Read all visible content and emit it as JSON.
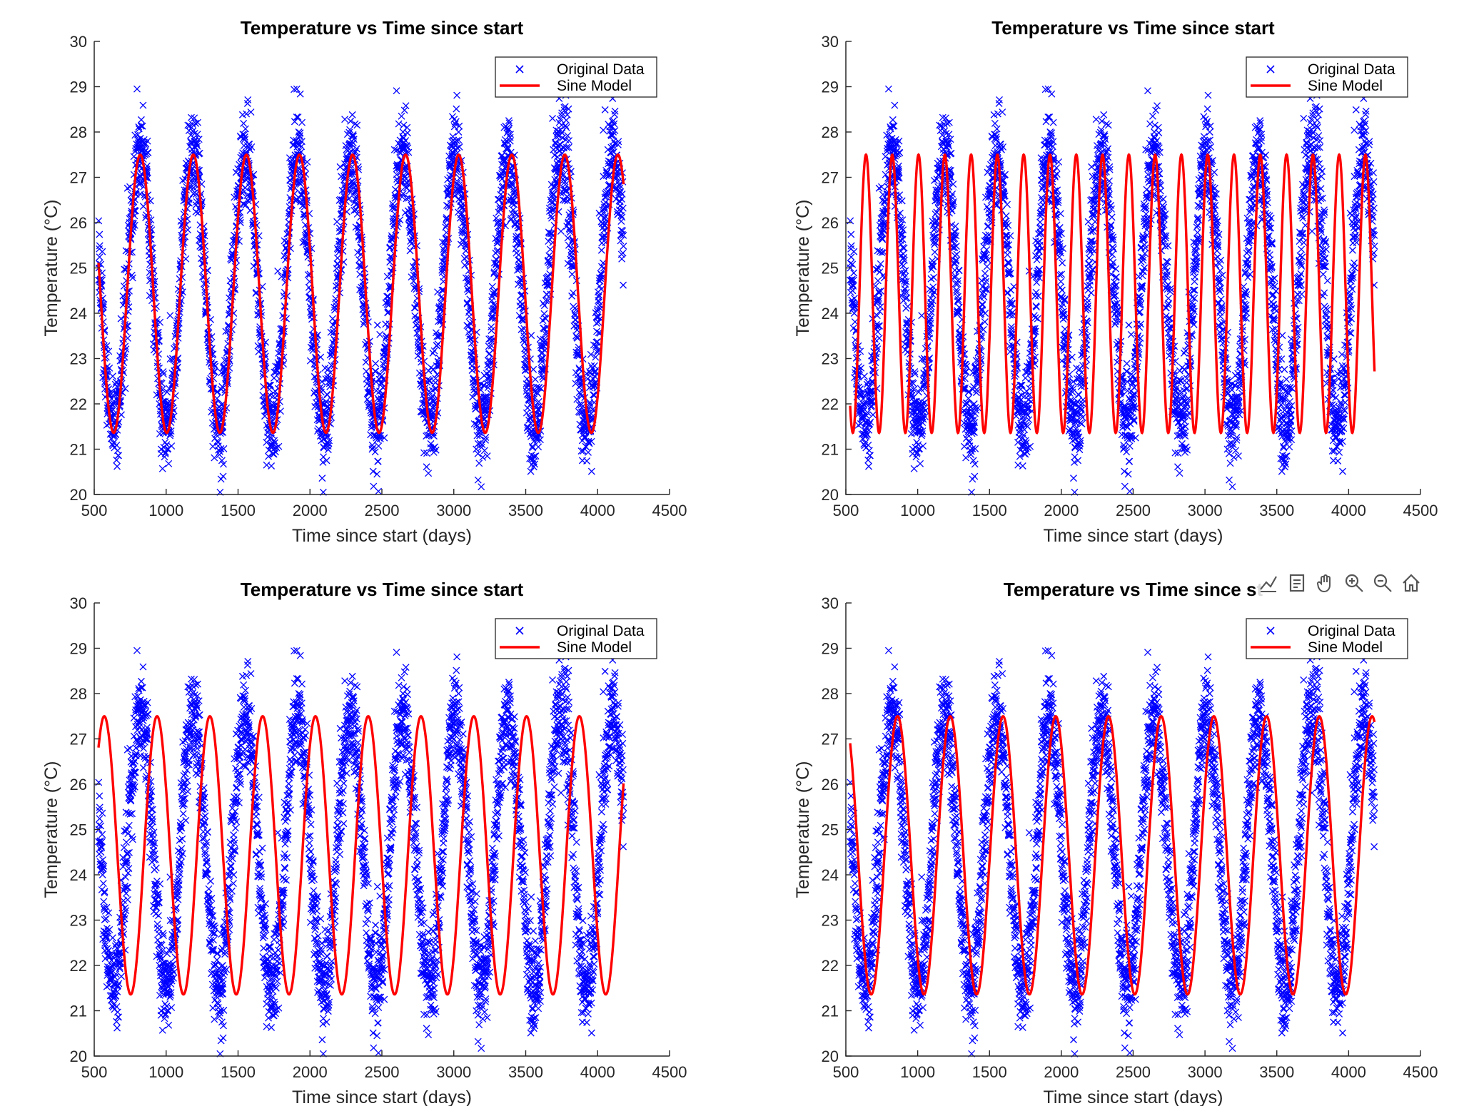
{
  "colors": {
    "data": "#0000ff",
    "model": "#ff0000",
    "axis": "#262626"
  },
  "toolbar": [
    "brush-icon",
    "datatip-icon",
    "pan-hand-icon",
    "zoom-in-icon",
    "zoom-out-icon",
    "home-icon"
  ],
  "chart_data": [
    {
      "type": "scatter",
      "title": "Temperature vs Time since start",
      "xlabel": "Time since start (days)",
      "ylabel": "Temperature (°C)",
      "xlim": [
        500,
        4500
      ],
      "ylim": [
        20,
        30
      ],
      "xticks": [
        500,
        1000,
        1500,
        2000,
        2500,
        3000,
        3500,
        4000,
        4500
      ],
      "yticks": [
        20,
        21,
        22,
        23,
        24,
        25,
        26,
        27,
        28,
        29,
        30
      ],
      "legend": [
        "Original Data",
        "Sine Model"
      ],
      "legend_position": "top-right",
      "data_range": [
        530,
        4180
      ],
      "model": {
        "amplitude": 3.07,
        "offset": 24.43,
        "period_days": 369,
        "peak_day": 820,
        "x_range": [
          530,
          4180
        ]
      }
    },
    {
      "type": "scatter",
      "title": "Temperature vs Time since start",
      "xlabel": "Time since start (days)",
      "ylabel": "Temperature (°C)",
      "xlim": [
        500,
        4500
      ],
      "ylim": [
        20,
        30
      ],
      "xticks": [
        500,
        1000,
        1500,
        2000,
        2500,
        3000,
        3500,
        4000,
        4500
      ],
      "yticks": [
        20,
        21,
        22,
        23,
        24,
        25,
        26,
        27,
        28,
        29,
        30
      ],
      "legend": [
        "Original Data",
        "Sine Model"
      ],
      "legend_position": "top-right",
      "data_range": [
        530,
        4180
      ],
      "model": {
        "amplitude": 3.07,
        "offset": 24.43,
        "period_days": 183,
        "peak_day": 640,
        "x_range": [
          530,
          4180
        ]
      }
    },
    {
      "type": "scatter",
      "title": "Temperature vs Time since start",
      "xlabel": "Time since start (days)",
      "ylabel": "Temperature (°C)",
      "xlim": [
        500,
        4500
      ],
      "ylim": [
        20,
        30
      ],
      "xticks": [
        500,
        1000,
        1500,
        2000,
        2500,
        3000,
        3500,
        4000,
        4500
      ],
      "yticks": [
        20,
        21,
        22,
        23,
        24,
        25,
        26,
        27,
        28,
        29,
        30
      ],
      "legend": [
        "Original Data",
        "Sine Model"
      ],
      "legend_position": "top-right",
      "data_range": [
        530,
        4180
      ],
      "model": {
        "amplitude": 3.07,
        "offset": 24.43,
        "period_days": 367,
        "peak_day": 570,
        "x_range": [
          530,
          4180
        ]
      }
    },
    {
      "type": "scatter",
      "title": "Temperature vs Time since st",
      "xlabel": "Time since start (days)",
      "ylabel": "Temperature (°C)",
      "xlim": [
        500,
        4500
      ],
      "ylim": [
        20,
        30
      ],
      "xticks": [
        500,
        1000,
        1500,
        2000,
        2500,
        3000,
        3500,
        4000,
        4500
      ],
      "yticks": [
        20,
        21,
        22,
        23,
        24,
        25,
        26,
        27,
        28,
        29,
        30
      ],
      "legend": [
        "Original Data",
        "Sine Model"
      ],
      "legend_position": "top-right",
      "data_range": [
        530,
        4180
      ],
      "model": {
        "amplitude": 3.07,
        "offset": 24.43,
        "period_days": 367,
        "peak_day": 860,
        "x_range": [
          530,
          4180
        ]
      }
    }
  ]
}
